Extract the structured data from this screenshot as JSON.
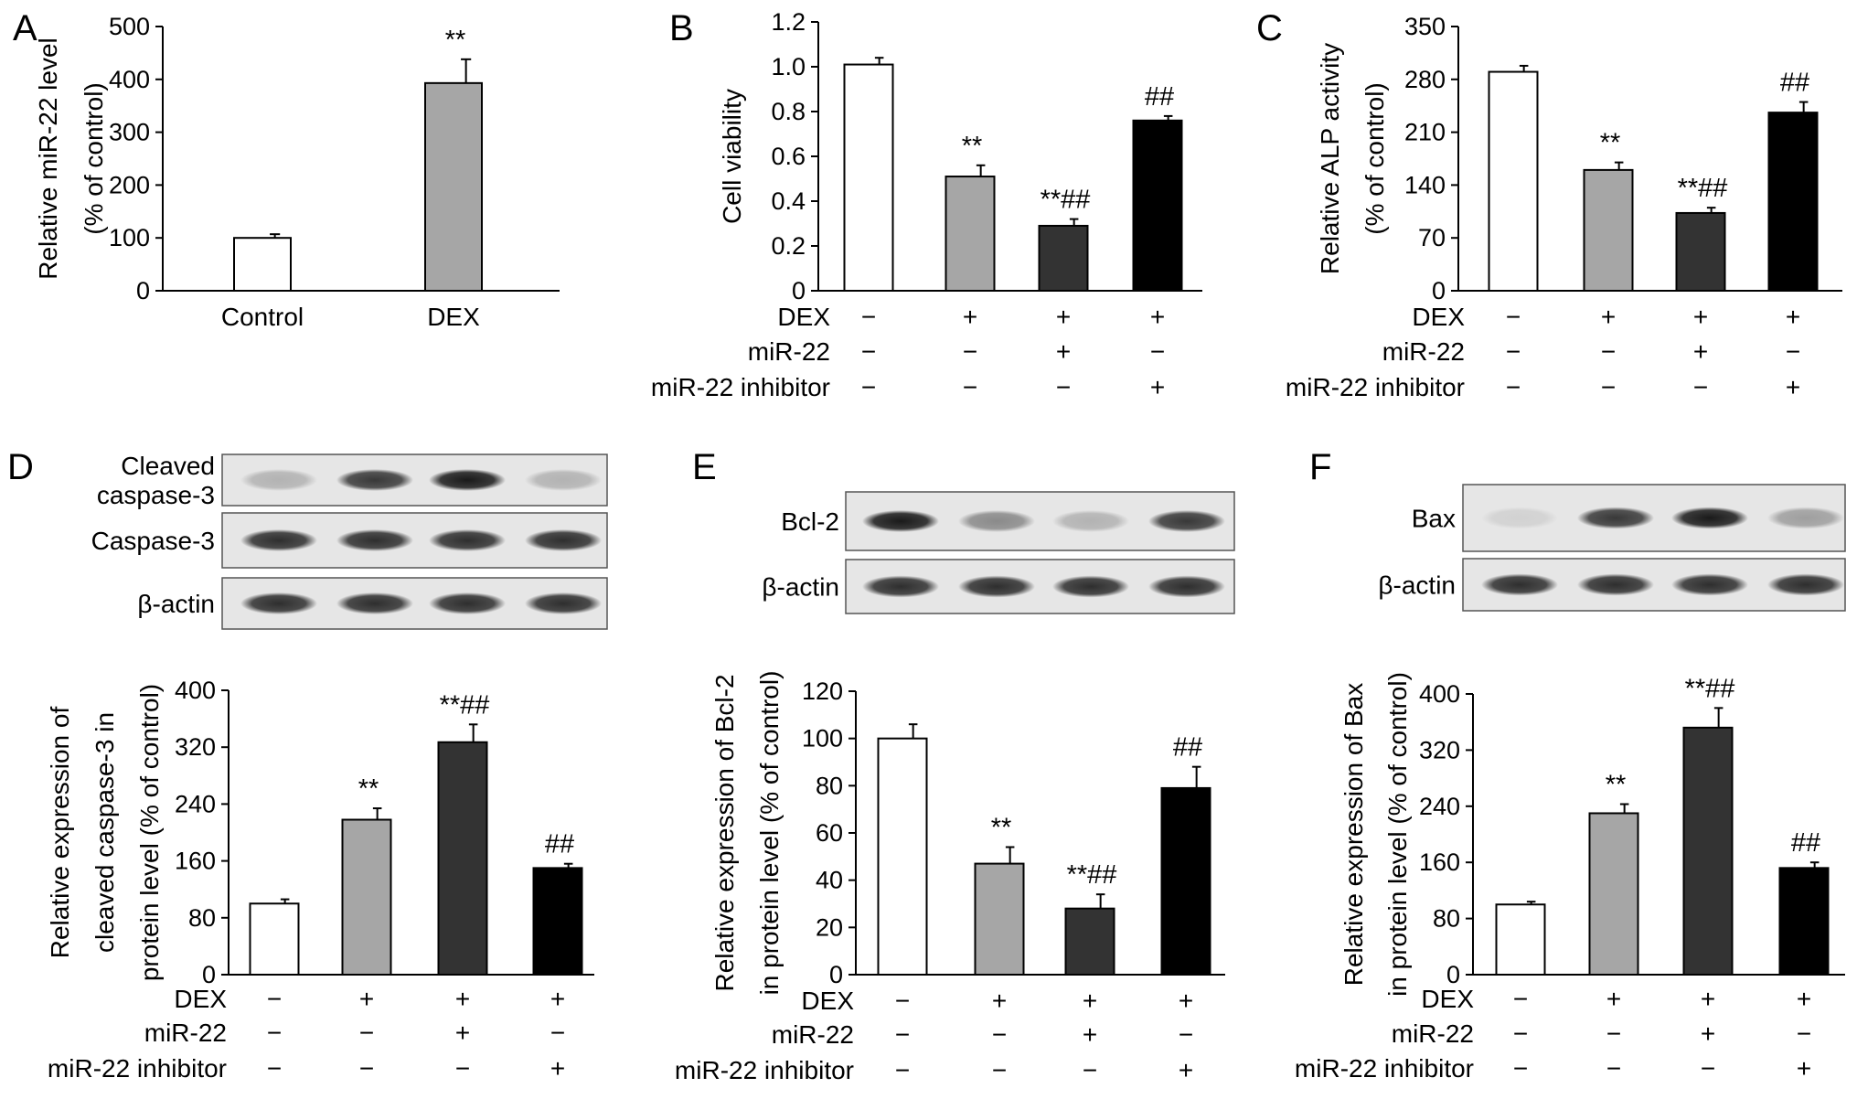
{
  "colors": {
    "control": "#ffffff",
    "dex": "#a6a6a6",
    "mir22": "#333333",
    "inhibitor": "#000000",
    "axis": "#000000",
    "blot_bg": "#e6e6e6",
    "band": "#1a1a1a"
  },
  "condition_rows": [
    "DEX",
    "miR-22",
    "miR-22 inhibitor"
  ],
  "condition_marks": [
    [
      "−",
      "+",
      "+",
      "+"
    ],
    [
      "−",
      "−",
      "+",
      "−"
    ],
    [
      "−",
      "−",
      "−",
      "+"
    ]
  ],
  "chart_data": [
    {
      "id": "A",
      "panel_label": "A",
      "type": "bar",
      "ylabel_lines": [
        "Relative miR-22 level",
        "(% of control)"
      ],
      "categories": [
        "Control",
        "DEX"
      ],
      "values": [
        100,
        393
      ],
      "errors": [
        7,
        45
      ],
      "annotations": [
        "",
        "**"
      ],
      "ylim": [
        0,
        500
      ],
      "yticks": [
        0,
        100,
        200,
        300,
        400,
        500
      ],
      "bar_colors": [
        "#ffffff",
        "#a6a6a6"
      ],
      "grid": false
    },
    {
      "id": "B",
      "panel_label": "B",
      "type": "bar",
      "ylabel_lines": [
        "Cell viability"
      ],
      "categories": [
        "DEX −/miR-22 −/inhibitor −",
        "DEX +",
        "DEX + miR-22",
        "DEX + miR-22 inhibitor"
      ],
      "values": [
        1.01,
        0.51,
        0.29,
        0.76
      ],
      "errors": [
        0.03,
        0.05,
        0.03,
        0.02
      ],
      "annotations": [
        "",
        "**",
        "**##",
        "##"
      ],
      "ylim": [
        0,
        1.2
      ],
      "yticks": [
        "0",
        "0.2",
        "0.4",
        "0.6",
        "0.8",
        "1.0",
        "1.2"
      ],
      "bar_colors": [
        "#ffffff",
        "#a6a6a6",
        "#333333",
        "#000000"
      ],
      "grid": false
    },
    {
      "id": "C",
      "panel_label": "C",
      "type": "bar",
      "ylabel_lines": [
        "Relative ALP activity",
        "(% of control)"
      ],
      "categories": [
        "DEX −/miR-22 −/inhibitor −",
        "DEX +",
        "DEX + miR-22",
        "DEX + miR-22 inhibitor"
      ],
      "values": [
        290,
        160,
        103,
        236
      ],
      "errors": [
        8,
        10,
        7,
        14
      ],
      "annotations": [
        "",
        "**",
        "**##",
        "##"
      ],
      "ylim": [
        0,
        350
      ],
      "yticks": [
        0,
        70,
        140,
        210,
        280,
        350
      ],
      "bar_colors": [
        "#ffffff",
        "#a6a6a6",
        "#333333",
        "#000000"
      ],
      "grid": false
    },
    {
      "id": "D",
      "panel_label": "D",
      "type": "bar",
      "ylabel_lines": [
        "Relative expression of",
        "cleaved caspase-3 in",
        "protein level (% of control)"
      ],
      "categories": [
        "DEX −/miR-22 −/inhibitor −",
        "DEX +",
        "DEX + miR-22",
        "DEX + miR-22 inhibitor"
      ],
      "values": [
        100,
        218,
        327,
        150
      ],
      "errors": [
        6,
        16,
        25,
        6
      ],
      "annotations": [
        "",
        "**",
        "**##",
        "##"
      ],
      "ylim": [
        0,
        400
      ],
      "yticks": [
        0,
        80,
        160,
        240,
        320,
        400
      ],
      "bar_colors": [
        "#ffffff",
        "#a6a6a6",
        "#333333",
        "#000000"
      ],
      "grid": false
    },
    {
      "id": "E",
      "panel_label": "E",
      "type": "bar",
      "ylabel_lines": [
        "Relative expression of Bcl-2",
        "in protein level (% of control)"
      ],
      "categories": [
        "DEX −/miR-22 −/inhibitor −",
        "DEX +",
        "DEX + miR-22",
        "DEX + miR-22 inhibitor"
      ],
      "values": [
        100,
        47,
        28,
        79
      ],
      "errors": [
        6,
        7,
        6,
        9
      ],
      "annotations": [
        "",
        "**",
        "**##",
        "##"
      ],
      "ylim": [
        0,
        120
      ],
      "yticks": [
        0,
        20,
        40,
        60,
        80,
        100,
        120
      ],
      "bar_colors": [
        "#ffffff",
        "#a6a6a6",
        "#333333",
        "#000000"
      ],
      "grid": false
    },
    {
      "id": "F",
      "panel_label": "F",
      "type": "bar",
      "ylabel_lines": [
        "Relative expression of Bax",
        "in protein level (% of control)"
      ],
      "categories": [
        "DEX −/miR-22 −/inhibitor −",
        "DEX +",
        "DEX + miR-22",
        "DEX + miR-22 inhibitor"
      ],
      "values": [
        100,
        230,
        352,
        152
      ],
      "errors": [
        4,
        13,
        28,
        8
      ],
      "annotations": [
        "",
        "**",
        "**##",
        "##"
      ],
      "ylim": [
        0,
        400
      ],
      "yticks": [
        0,
        80,
        160,
        240,
        320,
        400
      ],
      "bar_colors": [
        "#ffffff",
        "#a6a6a6",
        "#333333",
        "#000000"
      ],
      "grid": false
    }
  ],
  "blots": {
    "D": [
      {
        "label_lines": [
          "Cleaved",
          "caspase-3"
        ],
        "intensity": [
          0.25,
          0.85,
          1.0,
          0.25
        ]
      },
      {
        "label_lines": [
          "Caspase-3"
        ],
        "intensity": [
          0.9,
          0.9,
          0.9,
          0.9
        ]
      },
      {
        "label_lines": [
          "β-actin"
        ],
        "intensity": [
          0.9,
          0.9,
          0.9,
          0.9
        ]
      }
    ],
    "E": [
      {
        "label_lines": [
          "Bcl-2"
        ],
        "intensity": [
          1.0,
          0.45,
          0.25,
          0.85
        ]
      },
      {
        "label_lines": [
          "β-actin"
        ],
        "intensity": [
          0.9,
          0.9,
          0.9,
          0.9
        ]
      }
    ],
    "F": [
      {
        "label_lines": [
          "Bax"
        ],
        "intensity": [
          0.1,
          0.85,
          1.0,
          0.35
        ]
      },
      {
        "label_lines": [
          "β-actin"
        ],
        "intensity": [
          0.9,
          0.9,
          0.9,
          0.9
        ]
      }
    ]
  }
}
